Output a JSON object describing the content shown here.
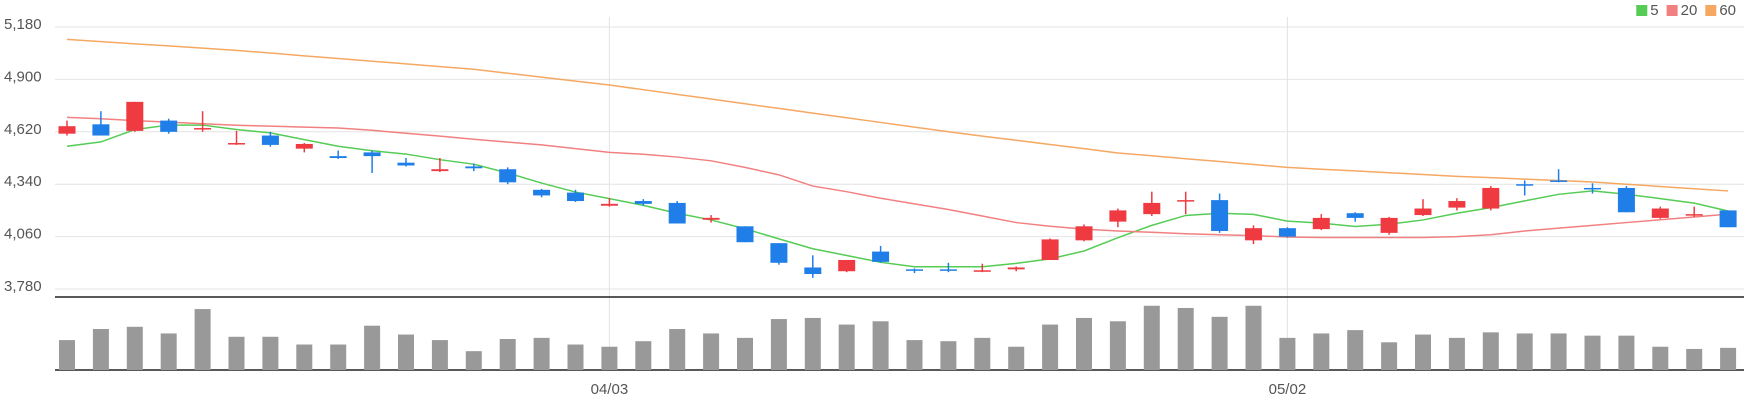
{
  "chart_data": {
    "type": "candlestick",
    "categories": [
      null,
      null,
      null,
      null,
      null,
      null,
      null,
      null,
      null,
      null,
      null,
      null,
      null,
      null,
      null,
      null,
      "04/03",
      null,
      null,
      null,
      null,
      null,
      null,
      null,
      null,
      null,
      null,
      null,
      null,
      null,
      null,
      null,
      null,
      null,
      null,
      null,
      "05/02",
      null,
      null,
      null,
      null,
      null,
      null,
      null,
      null,
      null,
      null,
      null,
      null,
      null
    ],
    "open": [
      4610,
      4660,
      4625,
      4680,
      4635,
      4555,
      4600,
      4530,
      4490,
      4510,
      4455,
      4410,
      4435,
      4420,
      4310,
      4295,
      4225,
      4250,
      4240,
      4150,
      4115,
      4025,
      3895,
      3875,
      3980,
      3885,
      3885,
      3875,
      3885,
      3935,
      4040,
      4140,
      4180,
      4250,
      4255,
      4040,
      4105,
      4100,
      4185,
      4080,
      4175,
      4215,
      4210,
      4340,
      4360,
      4320,
      4320,
      4160,
      4175,
      4200
    ],
    "high": [
      4680,
      4730,
      4780,
      4690,
      4730,
      4625,
      4620,
      4560,
      4520,
      4520,
      4480,
      4480,
      4450,
      4430,
      4315,
      4310,
      4265,
      4260,
      4250,
      4175,
      4115,
      4025,
      3960,
      3935,
      4010,
      3890,
      3920,
      3915,
      3900,
      4050,
      4125,
      4210,
      4300,
      4300,
      4290,
      4120,
      4110,
      4180,
      4190,
      4165,
      4260,
      4265,
      4330,
      4360,
      4420,
      4345,
      4330,
      4220,
      4220,
      4200
    ],
    "low": [
      4600,
      4600,
      4620,
      4610,
      4620,
      4550,
      4540,
      4510,
      4475,
      4400,
      4435,
      4405,
      4410,
      4340,
      4270,
      4245,
      4220,
      4225,
      4130,
      4135,
      4030,
      3910,
      3840,
      3870,
      3920,
      3865,
      3870,
      3870,
      3875,
      3935,
      4035,
      4110,
      4170,
      4180,
      4080,
      4020,
      4055,
      4095,
      4140,
      4070,
      4170,
      4200,
      4200,
      4280,
      4350,
      4290,
      4190,
      4155,
      4165,
      4110
    ],
    "close": [
      4650,
      4600,
      4780,
      4620,
      4640,
      4560,
      4550,
      4555,
      4480,
      4490,
      4440,
      4420,
      4425,
      4350,
      4280,
      4250,
      4235,
      4235,
      4130,
      4160,
      4030,
      3920,
      3860,
      3935,
      3925,
      3880,
      3880,
      3880,
      3895,
      4045,
      4115,
      4200,
      4240,
      4255,
      4090,
      4105,
      4060,
      4160,
      4160,
      4160,
      4210,
      4250,
      4320,
      4335,
      4355,
      4315,
      4190,
      4210,
      4180,
      4110
    ],
    "up_color": "#ee3a40",
    "down_color": "#1f7ee8",
    "ylim": [
      3780,
      5180
    ],
    "yticks": [
      {
        "value": 3780,
        "label": "3,780"
      },
      {
        "value": 4060,
        "label": "4,060"
      },
      {
        "value": 4340,
        "label": "4,340"
      },
      {
        "value": 4620,
        "label": "4,620"
      },
      {
        "value": 4900,
        "label": "4,900"
      },
      {
        "value": 5180,
        "label": "5,180"
      }
    ],
    "grid": true,
    "legend": "top-right",
    "moving_averages": [
      {
        "name": "5",
        "color": "#55cc55",
        "values": [
          4543,
          4566,
          4632,
          4656,
          4656,
          4632,
          4614,
          4578,
          4543,
          4519,
          4501,
          4471,
          4447,
          4400,
          4346,
          4298,
          4263,
          4227,
          4185,
          4149,
          4102,
          4048,
          3995,
          3959,
          3923,
          3899,
          3899,
          3899,
          3917,
          3941,
          3983,
          4054,
          4120,
          4173,
          4185,
          4179,
          4143,
          4132,
          4114,
          4126,
          4149,
          4185,
          4215,
          4251,
          4286,
          4304,
          4286,
          4263,
          4239,
          4197
        ]
      },
      {
        "name": "20",
        "color": "#f28080",
        "values": [
          4697,
          4690,
          4680,
          4672,
          4663,
          4655,
          4650,
          4645,
          4640,
          4628,
          4612,
          4597,
          4580,
          4565,
          4550,
          4530,
          4510,
          4500,
          4485,
          4465,
          4430,
          4390,
          4330,
          4300,
          4265,
          4235,
          4205,
          4170,
          4135,
          4115,
          4100,
          4090,
          4083,
          4075,
          4070,
          4065,
          4058,
          4055,
          4055,
          4055,
          4055,
          4060,
          4070,
          4090,
          4105,
          4120,
          4135,
          4150,
          4165,
          4180
        ]
      },
      {
        "name": "60",
        "color": "#f5a862",
        "values": [
          5114,
          5102,
          5090,
          5079,
          5067,
          5055,
          5041,
          5026,
          5012,
          4997,
          4983,
          4968,
          4954,
          4933,
          4912,
          4891,
          4870,
          4845,
          4820,
          4795,
          4770,
          4745,
          4720,
          4695,
          4670,
          4645,
          4620,
          4597,
          4575,
          4552,
          4530,
          4507,
          4492,
          4476,
          4461,
          4445,
          4430,
          4420,
          4411,
          4401,
          4392,
          4382,
          4375,
          4367,
          4360,
          4352,
          4340,
          4328,
          4316,
          4304
        ]
      }
    ],
    "volume": {
      "color": "#999999",
      "ylim": [
        0,
        65
      ],
      "values": [
        27,
        37,
        39,
        33,
        55,
        30,
        30,
        23,
        23,
        40,
        32,
        27,
        17,
        28,
        29,
        23,
        21,
        26,
        37,
        33,
        29,
        46,
        47,
        41,
        44,
        27,
        26,
        29,
        21,
        41,
        47,
        44,
        58,
        56,
        48,
        58,
        29,
        33,
        36,
        25,
        32,
        29,
        34,
        33,
        33,
        31,
        31,
        21,
        19,
        20
      ]
    }
  }
}
